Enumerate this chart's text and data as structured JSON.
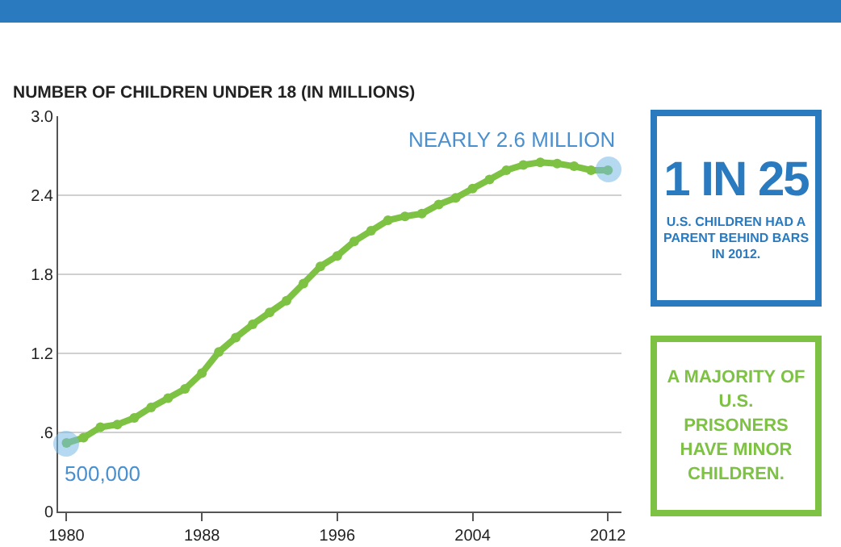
{
  "chart_data": [
    {
      "type": "line",
      "title": "NUMBER OF CHILDREN UNDER 18 (IN MILLIONS)",
      "x": [
        1980,
        1981,
        1982,
        1983,
        1984,
        1985,
        1986,
        1987,
        1988,
        1989,
        1990,
        1991,
        1992,
        1993,
        1994,
        1995,
        1996,
        1997,
        1998,
        1999,
        2000,
        2001,
        2002,
        2003,
        2004,
        2005,
        2006,
        2007,
        2008,
        2009,
        2010,
        2011,
        2012
      ],
      "series": [
        {
          "color": "#7dc242",
          "values": [
            0.52,
            0.56,
            0.64,
            0.66,
            0.71,
            0.79,
            0.86,
            0.93,
            1.05,
            1.21,
            1.32,
            1.42,
            1.51,
            1.6,
            1.73,
            1.86,
            1.94,
            2.05,
            2.13,
            2.21,
            2.24,
            2.26,
            2.33,
            2.38,
            2.45,
            2.52,
            2.59,
            2.63,
            2.65,
            2.64,
            2.62,
            2.59,
            2.59
          ]
        }
      ],
      "xlim": [
        1979.5,
        2012.8
      ],
      "xticks": [
        1980,
        1988,
        1996,
        2004,
        2012
      ],
      "ylim": [
        0,
        3
      ],
      "yticks": [
        0,
        {
          "value": 0.6,
          "label": ".6"
        },
        {
          "value": 1.2,
          "label": "1.2"
        },
        {
          "value": 1.8,
          "label": "1.8"
        },
        {
          "value": 2.4,
          "label": "2.4"
        },
        {
          "value": 3,
          "label": "3.0"
        }
      ],
      "grid": "y",
      "marker": "circle",
      "line_style": "solid",
      "annotations": [
        {
          "text": "500,000",
          "x": 1980,
          "y": 0.52
        },
        {
          "text": "NEARLY 2.6 MILLION",
          "x": 2012,
          "y": 2.59
        }
      ]
    },
    {
      "type": "other",
      "title": "1 IN 25",
      "subtitle": "U.S. CHILDREN HAD A PARENT BEHIND BARS IN 2012."
    },
    {
      "type": "other",
      "title": "A MAJORITY OF U.S. PRISONERS HAVE MINOR CHILDREN."
    }
  ]
}
